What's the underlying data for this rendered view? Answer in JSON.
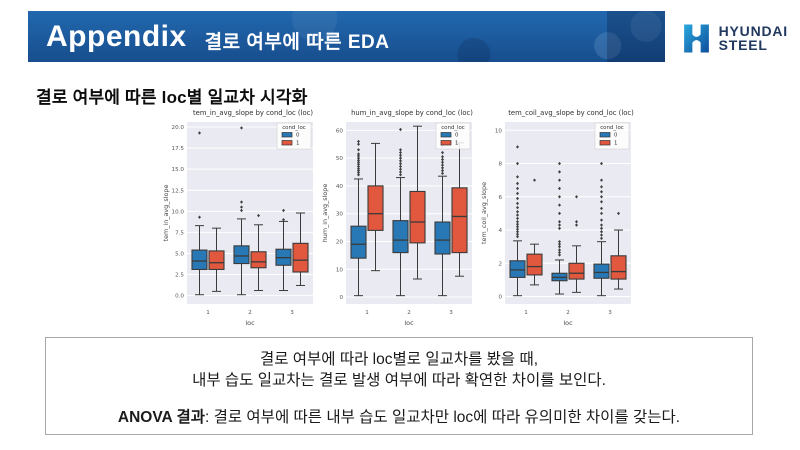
{
  "slide": {
    "header": {
      "title_en": "Appendix",
      "title_ko": "결로 여부에 따른 EDA"
    },
    "logo": {
      "line1": "HYUNDAI",
      "line2": "STEEL"
    },
    "section_title": "결로 여부에 따른 loc별 일교차 시각화",
    "summary_box": {
      "line1": "결로 여부에 따라 loc별로 일교차를 봤을 때,",
      "line2": "내부 습도 일교차는 결로 발생 여부에 따라 확연한 차이를 보인다.",
      "line3_bold": "ANOVA 결과",
      "line3_rest": ": 결로 여부에 따른 내부 습도 일교차만 loc에 따라 유의미한 차이를 갖는다."
    }
  },
  "colors": {
    "header_blue_top": "#2268ae",
    "header_blue_bottom": "#174e8e",
    "box_blue": "#2878b5",
    "box_red": "#e1583e",
    "plot_bg": "#eaeaf2",
    "logo_navy": "#21395f",
    "logo_blue_light": "#2aa7dd",
    "logo_blue_dark": "#0e4f9b"
  },
  "chart_data": [
    {
      "type": "box",
      "title": "tem_in_avg_slope by cond_loc (loc)",
      "xlabel": "loc",
      "ylabel": "tem_in_avg_slope",
      "categories": [
        "1",
        "2",
        "3"
      ],
      "ylim": [
        -1.0,
        20.6
      ],
      "yticks": [
        0,
        2.5,
        5,
        7.5,
        10,
        12.5,
        15,
        17.5,
        20
      ],
      "ytick_labels": [
        "0.0",
        "2.5",
        "5.0",
        "7.5",
        "10.0",
        "12.5",
        "15.0",
        "17.5",
        "20.0"
      ],
      "legend": {
        "title": "cond_loc",
        "entries": [
          "0",
          "1"
        ]
      },
      "grid": true,
      "legend_position": "upper right",
      "series": [
        {
          "name": "0",
          "color": "#2878b5",
          "boxes": [
            {
              "lo": 0.1,
              "q1": 3.1,
              "med": 4.1,
              "q3": 5.4,
              "hi": 8.3,
              "outliers": [
                9.3,
                19.3
              ]
            },
            {
              "lo": 0.1,
              "q1": 3.8,
              "med": 4.7,
              "q3": 5.9,
              "hi": 9.1,
              "outliers": [
                10.1,
                10.5,
                11.1,
                19.9
              ]
            },
            {
              "lo": 0.6,
              "q1": 3.6,
              "med": 4.5,
              "q3": 5.5,
              "hi": 8.8,
              "outliers": [
                9.0,
                10.1
              ]
            }
          ]
        },
        {
          "name": "1",
          "color": "#e1583e",
          "boxes": [
            {
              "lo": 0.5,
              "q1": 3.1,
              "med": 3.9,
              "q3": 5.3,
              "hi": 8.0,
              "outliers": []
            },
            {
              "lo": 0.6,
              "q1": 3.3,
              "med": 4.0,
              "q3": 5.2,
              "hi": 8.4,
              "outliers": [
                9.5
              ]
            },
            {
              "lo": 1.2,
              "q1": 2.8,
              "med": 4.2,
              "q3": 6.2,
              "hi": 9.8,
              "outliers": []
            }
          ]
        }
      ]
    },
    {
      "type": "box",
      "title": "hum_in_avg_slope by cond_loc (loc)",
      "xlabel": "loc",
      "ylabel": "hum_in_avg_slope",
      "categories": [
        "1",
        "2",
        "3"
      ],
      "ylim": [
        -2.5,
        63
      ],
      "yticks": [
        0,
        10,
        20,
        30,
        40,
        50,
        60
      ],
      "ytick_labels": [
        "0",
        "10",
        "20",
        "30",
        "40",
        "50",
        "60"
      ],
      "legend": {
        "title": "cond_loc",
        "entries": [
          "0",
          "1"
        ]
      },
      "grid": true,
      "legend_position": "upper right",
      "series": [
        {
          "name": "0",
          "color": "#2878b5",
          "boxes": [
            {
              "lo": 0.5,
              "q1": 14,
              "med": 19,
              "q3": 25.5,
              "hi": 42.5,
              "outliers": [
                44,
                44.8,
                45.5,
                46.2,
                47,
                47.8,
                48.5,
                49.2,
                50,
                50.8,
                51.5,
                53,
                55,
                56
              ]
            },
            {
              "lo": 0.5,
              "q1": 16,
              "med": 20.5,
              "q3": 27.5,
              "hi": 43,
              "outliers": [
                44,
                45,
                46,
                47,
                48,
                49,
                50,
                51,
                52,
                53,
                60.3
              ]
            },
            {
              "lo": 0.5,
              "q1": 15.5,
              "med": 20.5,
              "q3": 27,
              "hi": 43.5,
              "outliers": [
                44.5,
                45.5,
                46.5,
                47.5,
                48.5,
                49.5,
                50.5,
                52,
                54.5
              ]
            }
          ]
        },
        {
          "name": "1",
          "color": "#e1583e",
          "boxes": [
            {
              "lo": 9.5,
              "q1": 24,
              "med": 30,
              "q3": 40,
              "hi": 55.3,
              "outliers": []
            },
            {
              "lo": 6.5,
              "q1": 19.5,
              "med": 27,
              "q3": 38,
              "hi": 61.5,
              "outliers": []
            },
            {
              "lo": 7.5,
              "q1": 16,
              "med": 29,
              "q3": 39.3,
              "hi": 55.5,
              "outliers": []
            }
          ]
        }
      ]
    },
    {
      "type": "box",
      "title": "tem_coil_avg_slope by cond_loc (loc)",
      "xlabel": "loc",
      "ylabel": "tem_coil_avg_slope",
      "categories": [
        "1",
        "2",
        "3"
      ],
      "ylim": [
        -0.45,
        10.5
      ],
      "yticks": [
        0,
        2,
        4,
        6,
        8,
        10
      ],
      "ytick_labels": [
        "0",
        "2",
        "4",
        "6",
        "8",
        "10"
      ],
      "legend": {
        "title": "cond_loc",
        "entries": [
          "0",
          "1"
        ]
      },
      "grid": true,
      "legend_position": "upper right",
      "series": [
        {
          "name": "0",
          "color": "#2878b5",
          "boxes": [
            {
              "lo": 0.05,
              "q1": 1.15,
              "med": 1.6,
              "q3": 2.15,
              "hi": 3.35,
              "outliers": [
                3.6,
                3.75,
                3.9,
                4.05,
                4.2,
                4.35,
                4.5,
                4.7,
                4.9,
                5.1,
                5.35,
                5.6,
                5.9,
                6.2,
                6.5,
                6.8,
                7.2,
                8.0,
                9.0
              ]
            },
            {
              "lo": 0.15,
              "q1": 0.95,
              "med": 1.15,
              "q3": 1.4,
              "hi": 2.2,
              "outliers": [
                2.5,
                2.65,
                2.8,
                3.0,
                3.15,
                3.3,
                4.1,
                4.3,
                4.5,
                5.0,
                5.5,
                6.0,
                6.5,
                7.0,
                7.5,
                8.0
              ]
            },
            {
              "lo": 0.05,
              "q1": 1.1,
              "med": 1.45,
              "q3": 1.95,
              "hi": 3.3,
              "outliers": [
                3.5,
                3.7,
                3.9,
                4.1,
                4.3,
                4.6,
                5.0,
                5.3,
                5.7,
                6.0,
                6.3,
                6.6,
                7.0,
                8.0
              ]
            }
          ]
        },
        {
          "name": "1",
          "color": "#e1583e",
          "boxes": [
            {
              "lo": 0.7,
              "q1": 1.3,
              "med": 1.8,
              "q3": 2.55,
              "hi": 3.15,
              "outliers": [
                7.0
              ]
            },
            {
              "lo": 0.25,
              "q1": 1.05,
              "med": 1.4,
              "q3": 2.0,
              "hi": 3.05,
              "outliers": [
                4.3,
                4.5,
                6.0
              ]
            },
            {
              "lo": 0.45,
              "q1": 1.05,
              "med": 1.5,
              "q3": 2.45,
              "hi": 4.0,
              "outliers": [
                5.0
              ]
            }
          ]
        }
      ]
    }
  ]
}
